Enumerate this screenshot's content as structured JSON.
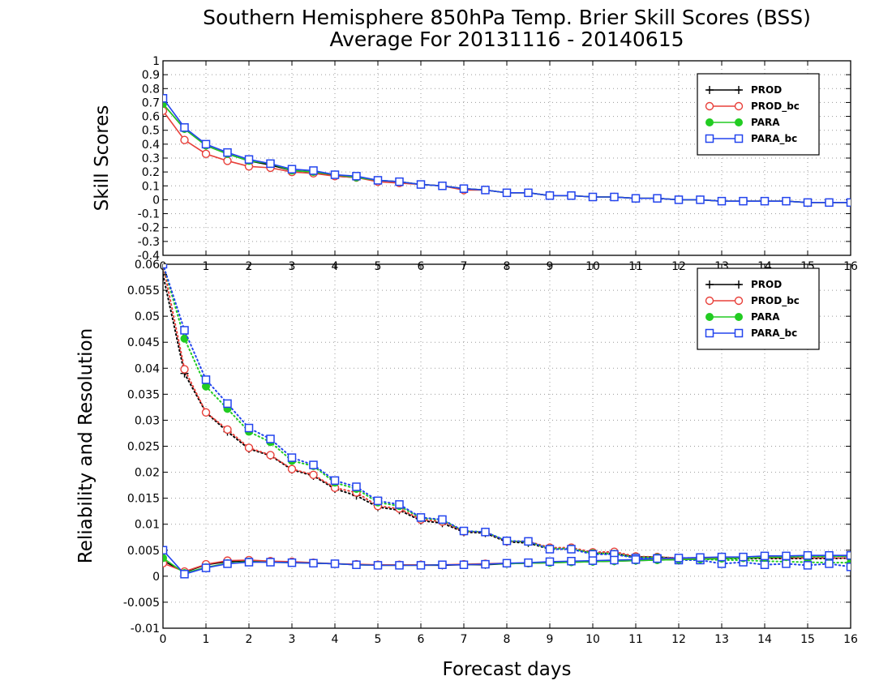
{
  "title": {
    "line1": "Southern Hemisphere 850hPa Temp. Brier Skill Scores (BSS)",
    "line2": "Average For 20131116 - 20140615"
  },
  "colors": {
    "PROD": "#000000",
    "PROD_bc": "#e8403a",
    "PARA": "#22cc22",
    "PARA_bc": "#2244ee"
  },
  "chart_data": [
    {
      "type": "line",
      "panel": "top",
      "ylabel": "Skill Scores",
      "xlabel": "",
      "xlim": [
        0,
        16
      ],
      "ylim": [
        -0.4,
        1
      ],
      "xticks": [
        0,
        1,
        2,
        3,
        4,
        5,
        6,
        7,
        8,
        9,
        10,
        11,
        12,
        13,
        14,
        15,
        16
      ],
      "yticks": [
        -0.4,
        -0.3,
        -0.2,
        -0.1,
        0,
        0.1,
        0.2,
        0.3,
        0.4,
        0.5,
        0.6,
        0.7,
        0.8,
        0.9,
        1
      ],
      "ytick_labels": [
        "-0.4",
        "-0.3",
        "-0.2",
        "-0.1",
        "0",
        "0.1",
        "0.2",
        "0.3",
        "0.4",
        "0.5",
        "0.6",
        "0.7",
        "0.8",
        "0.9",
        "1"
      ],
      "grid": true,
      "legend": {
        "position": "top-right",
        "entries": [
          "PROD",
          "PROD_bc",
          "PARA",
          "PARA_bc"
        ]
      },
      "x": [
        0,
        0.5,
        1,
        1.5,
        2,
        2.5,
        3,
        3.5,
        4,
        4.5,
        5,
        5.5,
        6,
        6.5,
        7,
        7.5,
        8,
        8.5,
        9,
        9.5,
        10,
        10.5,
        11,
        11.5,
        12,
        12.5,
        13,
        13.5,
        14,
        14.5,
        15,
        15.5,
        16
      ],
      "series": [
        {
          "name": "PROD",
          "marker": "plus",
          "values": [
            0.69,
            0.51,
            0.39,
            0.33,
            0.28,
            0.25,
            0.21,
            0.2,
            0.17,
            0.16,
            0.14,
            0.13,
            0.11,
            0.1,
            0.08,
            0.07,
            0.05,
            0.05,
            0.03,
            0.03,
            0.02,
            0.02,
            0.01,
            0.01,
            0.0,
            0.0,
            -0.01,
            -0.01,
            -0.01,
            -0.01,
            -0.02,
            -0.02,
            -0.02
          ]
        },
        {
          "name": "PROD_bc",
          "marker": "circle",
          "values": [
            0.64,
            0.43,
            0.33,
            0.28,
            0.24,
            0.23,
            0.2,
            0.19,
            0.17,
            0.16,
            0.13,
            0.12,
            0.11,
            0.1,
            0.07,
            0.07,
            0.05,
            0.05,
            0.03,
            0.03,
            0.02,
            0.02,
            0.01,
            0.01,
            0.0,
            0.0,
            -0.01,
            -0.01,
            -0.01,
            -0.01,
            -0.02,
            -0.02,
            -0.02
          ]
        },
        {
          "name": "PARA",
          "marker": "dot",
          "values": [
            0.69,
            0.51,
            0.39,
            0.33,
            0.28,
            0.26,
            0.21,
            0.2,
            0.18,
            0.16,
            0.14,
            0.13,
            0.11,
            0.1,
            0.08,
            0.07,
            0.05,
            0.05,
            0.03,
            0.03,
            0.02,
            0.02,
            0.01,
            0.01,
            0.0,
            0.0,
            -0.01,
            -0.01,
            -0.01,
            -0.01,
            -0.02,
            -0.02,
            -0.02
          ]
        },
        {
          "name": "PARA_bc",
          "marker": "square",
          "values": [
            0.73,
            0.52,
            0.4,
            0.34,
            0.29,
            0.26,
            0.22,
            0.21,
            0.18,
            0.17,
            0.14,
            0.13,
            0.11,
            0.1,
            0.08,
            0.07,
            0.05,
            0.05,
            0.03,
            0.03,
            0.02,
            0.02,
            0.01,
            0.01,
            0.0,
            0.0,
            -0.01,
            -0.01,
            -0.01,
            -0.01,
            -0.02,
            -0.02,
            -0.02
          ]
        }
      ]
    },
    {
      "type": "line",
      "panel": "bottom",
      "ylabel": "Reliability and Resolution",
      "xlabel": "Forecast days",
      "xlim": [
        0,
        16
      ],
      "ylim": [
        -0.01,
        0.06
      ],
      "xticks": [
        0,
        1,
        2,
        3,
        4,
        5,
        6,
        7,
        8,
        9,
        10,
        11,
        12,
        13,
        14,
        15,
        16
      ],
      "yticks": [
        -0.01,
        -0.005,
        0,
        0.005,
        0.01,
        0.015,
        0.02,
        0.025,
        0.03,
        0.035,
        0.04,
        0.045,
        0.05,
        0.055,
        0.06
      ],
      "ytick_labels": [
        "-0.01",
        "-0.005",
        "0",
        "0.005",
        "0.01",
        "0.015",
        "0.02",
        "0.025",
        "0.03",
        "0.035",
        "0.04",
        "0.045",
        "0.05",
        "0.055",
        "0.06"
      ],
      "grid": true,
      "legend": {
        "position": "top-right",
        "entries": [
          "PROD",
          "PROD_bc",
          "PARA",
          "PARA_bc"
        ]
      },
      "x": [
        0,
        0.5,
        1,
        1.5,
        2,
        2.5,
        3,
        3.5,
        4,
        4.5,
        5,
        5.5,
        6,
        6.5,
        7,
        7.5,
        8,
        8.5,
        9,
        9.5,
        10,
        10.5,
        11,
        11.5,
        12,
        12.5,
        13,
        13.5,
        14,
        14.5,
        15,
        15.5,
        16
      ],
      "series": [
        {
          "name": "PROD",
          "group": "resolution",
          "marker": "plus",
          "values": [
            0.058,
            0.039,
            0.0315,
            0.0278,
            0.0245,
            0.0232,
            0.0205,
            0.0193,
            0.0168,
            0.0155,
            0.0133,
            0.0127,
            0.0107,
            0.0102,
            0.0085,
            0.0083,
            0.0066,
            0.0064,
            0.0052,
            0.0052,
            0.0044,
            0.0044,
            0.0037,
            0.0037,
            0.0034,
            0.0034,
            0.0034,
            0.0034,
            0.0034,
            0.0034,
            0.0034,
            0.0034,
            0.0035
          ]
        },
        {
          "name": "PROD_bc",
          "group": "resolution",
          "marker": "circle",
          "values": [
            0.06,
            0.0398,
            0.0315,
            0.0282,
            0.0247,
            0.0233,
            0.0206,
            0.0195,
            0.017,
            0.0161,
            0.0135,
            0.013,
            0.0109,
            0.0105,
            0.0086,
            0.0085,
            0.0067,
            0.0067,
            0.0055,
            0.0055,
            0.0046,
            0.0047,
            0.0038,
            0.0037,
            0.0035,
            0.0035,
            0.0035,
            0.0035,
            0.0035,
            0.0035,
            0.0035,
            0.0035,
            0.0035
          ]
        },
        {
          "name": "PARA",
          "group": "resolution",
          "marker": "dot",
          "values": [
            0.06,
            0.0457,
            0.0365,
            0.0322,
            0.0278,
            0.0258,
            0.0222,
            0.0212,
            0.018,
            0.0168,
            0.0142,
            0.0135,
            0.0112,
            0.0108,
            0.0087,
            0.0085,
            0.0068,
            0.0066,
            0.0053,
            0.0053,
            0.0044,
            0.0043,
            0.0036,
            0.0036,
            0.0033,
            0.0033,
            0.0031,
            0.0031,
            0.0029,
            0.0028,
            0.0027,
            0.0026,
            0.0026
          ]
        },
        {
          "name": "PARA_bc",
          "group": "resolution",
          "marker": "square",
          "values": [
            0.06,
            0.0473,
            0.0378,
            0.0332,
            0.0285,
            0.0264,
            0.0228,
            0.0214,
            0.0184,
            0.0172,
            0.0145,
            0.0138,
            0.0113,
            0.0109,
            0.0087,
            0.0085,
            0.0068,
            0.0067,
            0.0052,
            0.0052,
            0.0042,
            0.0042,
            0.0035,
            0.0034,
            0.0031,
            0.0031,
            0.0024,
            0.0027,
            0.0022,
            0.0024,
            0.0021,
            0.0024,
            0.0018
          ]
        },
        {
          "name": "PROD",
          "group": "reliability",
          "marker": "plus",
          "values": [
            0.003,
            0.0008,
            0.0022,
            0.0028,
            0.003,
            0.0028,
            0.0027,
            0.0025,
            0.0024,
            0.0022,
            0.0021,
            0.0021,
            0.0021,
            0.0021,
            0.0022,
            0.0022,
            0.0024,
            0.0025,
            0.0026,
            0.0027,
            0.0028,
            0.0029,
            0.003,
            0.0031,
            0.0032,
            0.0033,
            0.0034,
            0.0035,
            0.0036,
            0.0037,
            0.0038,
            0.0038,
            0.0039
          ]
        },
        {
          "name": "PROD_bc",
          "group": "reliability",
          "marker": "circle",
          "values": [
            0.0025,
            0.0009,
            0.0023,
            0.003,
            0.0031,
            0.0029,
            0.0028,
            0.0026,
            0.0024,
            0.0023,
            0.0022,
            0.0022,
            0.0022,
            0.0022,
            0.0023,
            0.0024,
            0.0025,
            0.0025,
            0.0027,
            0.0028,
            0.0029,
            0.003,
            0.0031,
            0.0032,
            0.0033,
            0.0034,
            0.0035,
            0.0036,
            0.0037,
            0.0038,
            0.0039,
            0.0039,
            0.004
          ]
        },
        {
          "name": "PARA",
          "group": "reliability",
          "marker": "dot",
          "values": [
            0.0035,
            0.0006,
            0.0017,
            0.0025,
            0.0028,
            0.0027,
            0.0026,
            0.0025,
            0.0024,
            0.0022,
            0.0021,
            0.0021,
            0.0021,
            0.0022,
            0.0022,
            0.0023,
            0.0024,
            0.0025,
            0.0026,
            0.0027,
            0.0028,
            0.0029,
            0.003,
            0.0031,
            0.0032,
            0.0033,
            0.0034,
            0.0035,
            0.0036,
            0.0037,
            0.0038,
            0.0038,
            0.0039
          ]
        },
        {
          "name": "PARA_bc",
          "group": "reliability",
          "marker": "square",
          "values": [
            0.005,
            0.0004,
            0.0016,
            0.0024,
            0.0027,
            0.0027,
            0.0026,
            0.0025,
            0.0024,
            0.0022,
            0.0021,
            0.0021,
            0.0021,
            0.0022,
            0.0022,
            0.0023,
            0.0025,
            0.0026,
            0.0028,
            0.0029,
            0.003,
            0.0031,
            0.0032,
            0.0034,
            0.0035,
            0.0036,
            0.0037,
            0.0037,
            0.0039,
            0.0039,
            0.004,
            0.004,
            0.004
          ]
        }
      ]
    }
  ]
}
